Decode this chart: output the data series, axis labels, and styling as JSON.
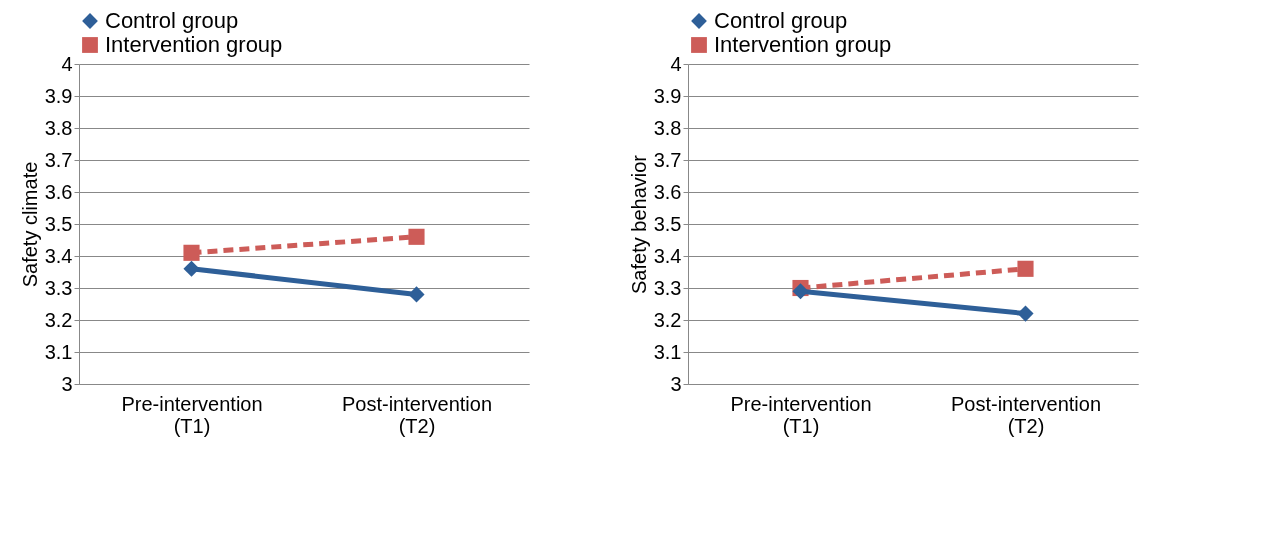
{
  "chart_data": [
    {
      "type": "line",
      "ylabel": "Safety climate",
      "categories": [
        "Pre-intervention\n(T1)",
        "Post-intervention\n(T2)"
      ],
      "ylim": [
        3,
        4
      ],
      "yticks": [
        3,
        3.1,
        3.2,
        3.3,
        3.4,
        3.5,
        3.6,
        3.7,
        3.8,
        3.9,
        4
      ],
      "grid": "y",
      "legend": "top",
      "series": [
        {
          "name": "Control group",
          "color": "#2e5f98",
          "values": [
            3.36,
            3.28
          ],
          "marker": "diamond",
          "line_style": "solid"
        },
        {
          "name": "Intervention group",
          "color": "#cd5c58",
          "values": [
            3.41,
            3.46
          ],
          "marker": "square",
          "line_style": "dashed"
        }
      ]
    },
    {
      "type": "line",
      "ylabel": "Safety behavior",
      "categories": [
        "Pre-intervention\n(T1)",
        "Post-intervention\n(T2)"
      ],
      "ylim": [
        3,
        4
      ],
      "yticks": [
        3,
        3.1,
        3.2,
        3.3,
        3.4,
        3.5,
        3.6,
        3.7,
        3.8,
        3.9,
        4
      ],
      "grid": "y",
      "legend": "top",
      "series": [
        {
          "name": "Control group",
          "color": "#2e5f98",
          "values": [
            3.29,
            3.22
          ],
          "marker": "diamond",
          "line_style": "solid"
        },
        {
          "name": "Intervention group",
          "color": "#cd5c58",
          "values": [
            3.3,
            3.36
          ],
          "marker": "square",
          "line_style": "dashed"
        }
      ]
    }
  ]
}
